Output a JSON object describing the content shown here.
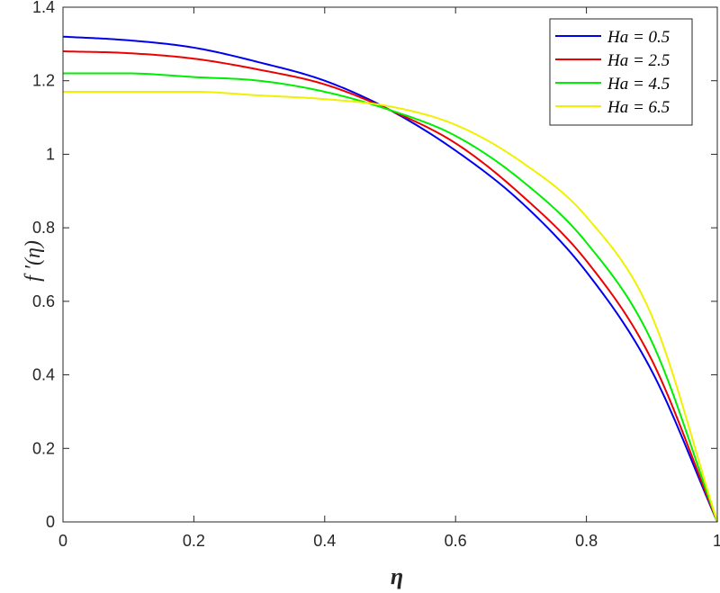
{
  "chart_data": {
    "type": "line",
    "xlabel": "η",
    "ylabel": "f ′(η)",
    "xlim": [
      0,
      1
    ],
    "ylim": [
      0,
      1.4
    ],
    "x_ticks": [
      0,
      0.2,
      0.4,
      0.6,
      0.8,
      1
    ],
    "x_tick_labels": [
      "0",
      "0.2",
      "0.4",
      "0.6",
      "0.8",
      "1"
    ],
    "y_ticks": [
      0,
      0.2,
      0.4,
      0.6,
      0.8,
      1,
      1.2,
      1.4
    ],
    "y_tick_labels": [
      "0",
      "0.2",
      "0.4",
      "0.6",
      "0.8",
      "1",
      "1.2",
      "1.4"
    ],
    "grid": false,
    "legend_position": "top-right",
    "x": [
      0,
      0.1,
      0.2,
      0.3,
      0.4,
      0.5,
      0.6,
      0.7,
      0.8,
      0.9,
      1.0
    ],
    "series": [
      {
        "name": "Ha = 0.5",
        "color": "#0000ee",
        "values": [
          1.32,
          1.31,
          1.29,
          1.25,
          1.2,
          1.12,
          1.01,
          0.87,
          0.68,
          0.41,
          0.0
        ]
      },
      {
        "name": "Ha = 2.5",
        "color": "#ee0000",
        "values": [
          1.28,
          1.275,
          1.26,
          1.23,
          1.19,
          1.12,
          1.03,
          0.89,
          0.71,
          0.44,
          0.0
        ]
      },
      {
        "name": "Ha = 4.5",
        "color": "#00ee00",
        "values": [
          1.22,
          1.22,
          1.21,
          1.2,
          1.17,
          1.12,
          1.05,
          0.93,
          0.76,
          0.49,
          0.0
        ]
      },
      {
        "name": "Ha = 6.5",
        "color": "#f0f000",
        "values": [
          1.17,
          1.17,
          1.17,
          1.16,
          1.15,
          1.13,
          1.08,
          0.98,
          0.83,
          0.56,
          0.0
        ]
      }
    ]
  }
}
